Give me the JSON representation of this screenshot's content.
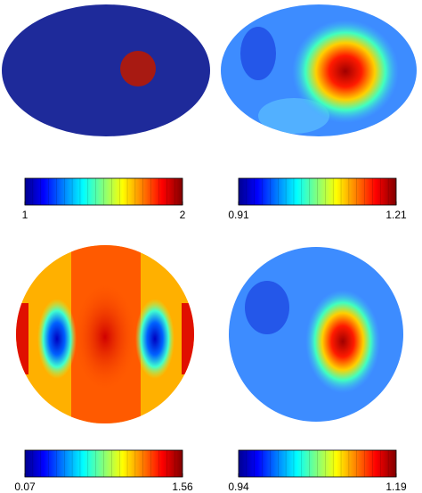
{
  "panels": [
    {
      "colorbar": {
        "min": 1,
        "max": 2
      }
    },
    {
      "colorbar": {
        "min": 0.91,
        "max": 1.21
      }
    },
    {
      "colorbar": {
        "min": 0.07,
        "max": 1.56
      }
    },
    {
      "colorbar": {
        "min": 0.94,
        "max": 1.19
      }
    }
  ]
}
